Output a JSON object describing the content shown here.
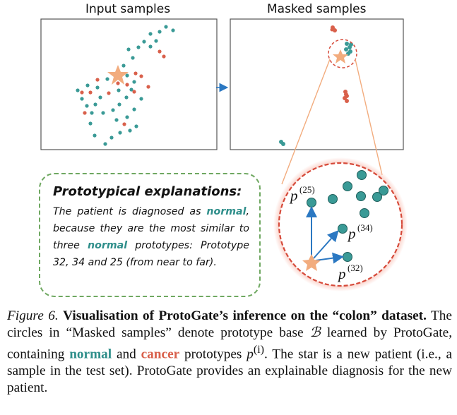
{
  "panels": {
    "input_title": "Input samples",
    "masked_title": "Masked samples"
  },
  "colors": {
    "normal": "#3a9a96",
    "cancer": "#d9604b",
    "star": "#f2ac7e",
    "arrow": "#2b78c2",
    "magnifier_ring": "#d64a3a",
    "box_border": "#6fa861"
  },
  "prototype_labels": {
    "p25": "(25)",
    "p34": "(34)",
    "p32": "(32)",
    "letter": "p"
  },
  "explanation": {
    "heading": "Prototypical explanations:",
    "text_1": "The patient is diagnosed as",
    "normal_word_1": "normal",
    "text_2": ", because they are the most similar to three",
    "normal_word_2": "normal",
    "text_3": "prototypes: Prototype 32, 34 and 25 (from near to far)."
  },
  "caption": {
    "figure_label": "Figure 6.",
    "bold_title": "Visualisation of ProtoGate’s inference on the “colon” dataset.",
    "text_1": "The circles in “Masked samples” denote prototype base",
    "math_B": "ℬ",
    "text_2": "learned by ProtoGate, containing",
    "normal_word": "normal",
    "text_and": "and",
    "cancer_word": "cancer",
    "text_3": "prototypes",
    "math_p": "p",
    "math_sup": "(i)",
    "text_4": ". The star is a new patient (i.e., a sample in the test set). ProtoGate provides an explainable diagnosis for the new patient."
  }
}
